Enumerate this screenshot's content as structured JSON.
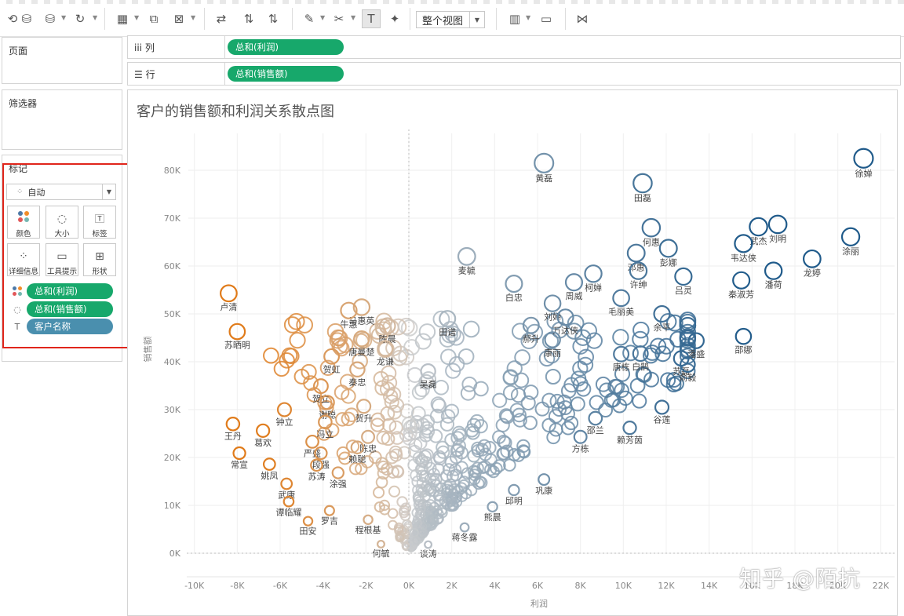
{
  "toolbar": {
    "view_select": "整个视图"
  },
  "pages_panel": {
    "title": "页面"
  },
  "filters_panel": {
    "title": "筛选器"
  },
  "marks_panel": {
    "title": "标记",
    "mark_type": "自动",
    "buttons": [
      "颜色",
      "大小",
      "标签",
      "详细信息",
      "工具提示",
      "形状"
    ],
    "fields": [
      {
        "label": "总和(利润)",
        "icon": "color-dots-icon",
        "kind": "measure"
      },
      {
        "label": "总和(销售额)",
        "icon": "size-icon",
        "kind": "measure"
      },
      {
        "label": "客户名称",
        "icon": "text-label-icon",
        "kind": "dimension"
      }
    ]
  },
  "columns_shelf": {
    "label": "列",
    "pill": "总和(利润)"
  },
  "rows_shelf": {
    "label": "行",
    "pill": "总和(销售额)"
  },
  "watermark": "知乎 @陌抗",
  "colors": {
    "measure_pill": "#17a86b",
    "dimension_pill": "#4a8fae",
    "negative_profit": "#e07b1a",
    "positive_profit": "#1f5a8a",
    "zero_profit": "#cfcfcf",
    "highlight_border": "#e0251b"
  },
  "chart_data": {
    "type": "scatter",
    "title": "客户的销售额和利润关系散点图",
    "xlabel": "利润",
    "ylabel": "销售额",
    "xlim": [
      -10000,
      22000
    ],
    "ylim": [
      0,
      85000
    ],
    "x_ticks": [
      "-10K",
      "-8K",
      "-6K",
      "-4K",
      "-2K",
      "0K",
      "2K",
      "4K",
      "6K",
      "8K",
      "10K",
      "12K",
      "14K",
      "16K",
      "18K",
      "20K",
      "22K"
    ],
    "y_ticks": [
      "0K",
      "10K",
      "20K",
      "30K",
      "40K",
      "50K",
      "60K",
      "70K",
      "80K"
    ],
    "grid": true,
    "marker": "hollow-circle",
    "color_by": "利润",
    "size_by": "销售额",
    "labeled_points": [
      {
        "name": "徐婵",
        "x": 21200,
        "y": 82500
      },
      {
        "name": "黄磊",
        "x": 6300,
        "y": 81500
      },
      {
        "name": "田磊",
        "x": 10900,
        "y": 77300
      },
      {
        "name": "刘明",
        "x": 17200,
        "y": 68700
      },
      {
        "name": "武杰",
        "x": 16300,
        "y": 68200
      },
      {
        "name": "何惠",
        "x": 11300,
        "y": 68000
      },
      {
        "name": "涂丽",
        "x": 20600,
        "y": 66100
      },
      {
        "name": "彭娜",
        "x": 12100,
        "y": 63700
      },
      {
        "name": "邓惠",
        "x": 10600,
        "y": 62700
      },
      {
        "name": "韦达侠",
        "x": 15600,
        "y": 64700
      },
      {
        "name": "龙婷",
        "x": 18800,
        "y": 61500
      },
      {
        "name": "麦毓",
        "x": 2700,
        "y": 62000
      },
      {
        "name": "许绅",
        "x": 10700,
        "y": 59000
      },
      {
        "name": "柯婵",
        "x": 8600,
        "y": 58400
      },
      {
        "name": "潘荷",
        "x": 17000,
        "y": 59000
      },
      {
        "name": "吕灵",
        "x": 12800,
        "y": 57800
      },
      {
        "name": "秦淑芳",
        "x": 15500,
        "y": 57000
      },
      {
        "name": "周威",
        "x": 7700,
        "y": 56600
      },
      {
        "name": "白忠",
        "x": 4900,
        "y": 56300
      },
      {
        "name": "刘婵",
        "x": 6700,
        "y": 52200
      },
      {
        "name": "毛丽美",
        "x": 9900,
        "y": 53300
      },
      {
        "name": "万达侠",
        "x": 7300,
        "y": 49300
      },
      {
        "name": "郝升",
        "x": 5700,
        "y": 47600
      },
      {
        "name": "田谱",
        "x": 1800,
        "y": 49000
      },
      {
        "name": "余平",
        "x": 11800,
        "y": 50000
      },
      {
        "name": "康丽",
        "x": 6700,
        "y": 44600
      },
      {
        "name": "潘盛",
        "x": 13400,
        "y": 44400
      },
      {
        "name": "唐栋",
        "x": 9900,
        "y": 41600
      },
      {
        "name": "白鹄",
        "x": 10800,
        "y": 41700
      },
      {
        "name": "邵娜",
        "x": 15600,
        "y": 45300
      },
      {
        "name": "苏磊",
        "x": 12700,
        "y": 40700
      },
      {
        "name": "俞毅",
        "x": 13000,
        "y": 39400
      },
      {
        "name": "卢清",
        "x": -8400,
        "y": 54300
      },
      {
        "name": "马惠英",
        "x": -2200,
        "y": 51400
      },
      {
        "name": "牛惠",
        "x": -2800,
        "y": 50700
      },
      {
        "name": "陈晨",
        "x": -1000,
        "y": 47500
      },
      {
        "name": "苏晒明",
        "x": -8000,
        "y": 46300
      },
      {
        "name": "唐曼楚",
        "x": -2200,
        "y": 44800
      },
      {
        "name": "龙谦",
        "x": -1100,
        "y": 42800
      },
      {
        "name": "贺虹",
        "x": -3600,
        "y": 41100
      },
      {
        "name": "秦忠",
        "x": -2400,
        "y": 38400
      },
      {
        "name": "吴磊",
        "x": 900,
        "y": 38000
      },
      {
        "name": "贺立",
        "x": -4100,
        "y": 34900
      },
      {
        "name": "谢聪",
        "x": -3800,
        "y": 31500
      },
      {
        "name": "贺升",
        "x": -2100,
        "y": 30700
      },
      {
        "name": "钟立",
        "x": -5800,
        "y": 30000
      },
      {
        "name": "冯立",
        "x": -3900,
        "y": 27400
      },
      {
        "name": "王丹",
        "x": -8200,
        "y": 27000
      },
      {
        "name": "陈忠",
        "x": -1900,
        "y": 24300
      },
      {
        "name": "葛欢",
        "x": -6800,
        "y": 25600
      },
      {
        "name": "严盛",
        "x": -4500,
        "y": 23300
      },
      {
        "name": "赖聪",
        "x": -2400,
        "y": 22100
      },
      {
        "name": "段强",
        "x": -4100,
        "y": 20900
      },
      {
        "name": "邵兰",
        "x": 8700,
        "y": 28200
      },
      {
        "name": "谷莲",
        "x": 11800,
        "y": 30500
      },
      {
        "name": "赖芳茵",
        "x": 10300,
        "y": 26200
      },
      {
        "name": "方栋",
        "x": 8000,
        "y": 24300
      },
      {
        "name": "常宣",
        "x": -7900,
        "y": 20900
      },
      {
        "name": "姚凤",
        "x": -6500,
        "y": 18600
      },
      {
        "name": "苏涛",
        "x": -4300,
        "y": 18400
      },
      {
        "name": "涂强",
        "x": -3300,
        "y": 16800
      },
      {
        "name": "武康",
        "x": -5700,
        "y": 14500
      },
      {
        "name": "巩康",
        "x": 6300,
        "y": 15400
      },
      {
        "name": "邱明",
        "x": 4900,
        "y": 13200
      },
      {
        "name": "谭临耀",
        "x": -5600,
        "y": 10800
      },
      {
        "name": "罗吉",
        "x": -3700,
        "y": 8900
      },
      {
        "name": "熊晨",
        "x": 3900,
        "y": 9700
      },
      {
        "name": "田安",
        "x": -4700,
        "y": 6700
      },
      {
        "name": "程根基",
        "x": -1900,
        "y": 7000
      },
      {
        "name": "蒋冬露",
        "x": 2600,
        "y": 5400
      },
      {
        "name": "何毓",
        "x": -1300,
        "y": 1900
      },
      {
        "name": "谈涛",
        "x": 900,
        "y": 1800
      }
    ]
  }
}
